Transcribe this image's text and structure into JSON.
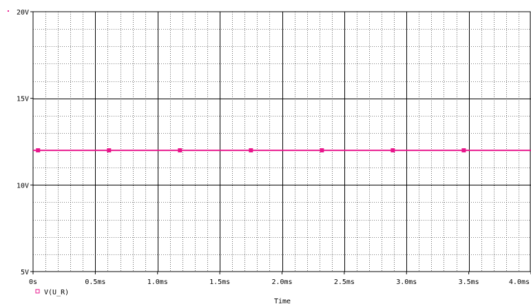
{
  "chart_data": {
    "type": "line",
    "xlabel": "Time",
    "ylabel": "",
    "xlim": [
      0,
      4.0
    ],
    "ylim": [
      5,
      20
    ],
    "x_ticks": [
      {
        "value": 0,
        "label": "0s"
      },
      {
        "value": 0.5,
        "label": "0.5ms"
      },
      {
        "value": 1.0,
        "label": "1.0ms"
      },
      {
        "value": 1.5,
        "label": "1.5ms"
      },
      {
        "value": 2.0,
        "label": "2.0ms"
      },
      {
        "value": 2.5,
        "label": "2.5ms"
      },
      {
        "value": 3.0,
        "label": "3.0ms"
      },
      {
        "value": 3.5,
        "label": "3.5ms"
      },
      {
        "value": 4.0,
        "label": "4.0ms"
      }
    ],
    "y_ticks": [
      {
        "value": 5,
        "label": "5V"
      },
      {
        "value": 10,
        "label": "10V"
      },
      {
        "value": 15,
        "label": "15V"
      },
      {
        "value": 20,
        "label": "20V"
      }
    ],
    "grid": true,
    "legend_position": "bottom-left",
    "series": [
      {
        "name": "V(U_R)",
        "color": "#e8168c",
        "x": [
          0,
          4.0
        ],
        "y": [
          12,
          12
        ],
        "markers_x": [
          0.04,
          0.61,
          1.18,
          1.75,
          2.32,
          2.89,
          3.46
        ]
      }
    ]
  }
}
